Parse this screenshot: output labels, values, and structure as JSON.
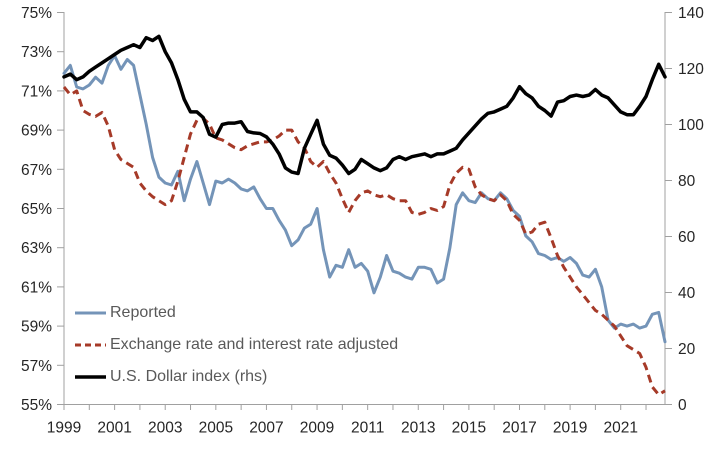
{
  "figure": {
    "background_color": "#ffffff",
    "axis_line_color": "#a0a0a0",
    "axis_label_color": "#262626",
    "legend_text_color": "#595959"
  },
  "chart_data": {
    "type": "line",
    "title": "",
    "frequency": "quarterly",
    "x_range": [
      "1999Q1",
      "2022Q4"
    ],
    "x_start_year": 1999,
    "x_quarters": 96,
    "x_axis": {
      "tick_years": [
        1999,
        2000,
        2001,
        2002,
        2003,
        2004,
        2005,
        2006,
        2007,
        2008,
        2009,
        2010,
        2011,
        2012,
        2013,
        2014,
        2015,
        2016,
        2017,
        2018,
        2019,
        2020,
        2021,
        2022
      ],
      "labels": [
        "1999",
        "2001",
        "2003",
        "2005",
        "2007",
        "2009",
        "2011",
        "2013",
        "2015",
        "2017",
        "2019",
        "2021"
      ],
      "label_year_step": 2
    },
    "left_axis": {
      "min": 55,
      "max": 75,
      "tick_step": 2,
      "tick_labels": [
        "55%",
        "57%",
        "59%",
        "61%",
        "63%",
        "65%",
        "67%",
        "69%",
        "71%",
        "73%",
        "75%"
      ]
    },
    "right_axis": {
      "min": 0,
      "max": 140,
      "tick_step": 20,
      "tick_labels": [
        "0",
        "20",
        "40",
        "60",
        "80",
        "100",
        "120",
        "140"
      ]
    },
    "grid": false,
    "legend_position": "inside-bottom-left",
    "series": [
      {
        "name": "Reported",
        "axis": "left",
        "color": "#7494b8",
        "dash": "",
        "width": 3,
        "values": [
          71.9,
          72.3,
          71.2,
          71.1,
          71.3,
          71.7,
          71.4,
          72.3,
          72.8,
          72.1,
          72.6,
          72.3,
          70.8,
          69.3,
          67.6,
          66.6,
          66.3,
          66.2,
          66.9,
          65.4,
          66.5,
          67.4,
          66.3,
          65.2,
          66.4,
          66.3,
          66.5,
          66.3,
          66.0,
          65.9,
          66.1,
          65.5,
          65.0,
          65.0,
          64.4,
          63.9,
          63.1,
          63.4,
          64.0,
          64.2,
          65.0,
          62.9,
          61.5,
          62.1,
          62.0,
          62.9,
          62.0,
          62.2,
          61.8,
          60.7,
          61.5,
          62.6,
          61.8,
          61.7,
          61.5,
          61.4,
          62.0,
          62.0,
          61.9,
          61.2,
          61.4,
          63.0,
          65.2,
          65.8,
          65.4,
          65.3,
          65.8,
          65.5,
          65.4,
          65.8,
          65.5,
          64.9,
          64.6,
          63.6,
          63.3,
          62.7,
          62.6,
          62.4,
          62.5,
          62.3,
          62.5,
          62.2,
          61.6,
          61.5,
          61.9,
          61.0,
          59.3,
          58.9,
          59.1,
          59.0,
          59.1,
          58.9,
          59.0,
          59.6,
          59.7,
          58.2
        ]
      },
      {
        "name": "Exchange rate and interest rate adjusted",
        "axis": "left",
        "color": "#a63a28",
        "dash": "8 5",
        "width": 3,
        "values": [
          71.2,
          70.8,
          71.0,
          70.0,
          69.8,
          69.7,
          69.9,
          69.2,
          68.0,
          67.5,
          67.3,
          67.1,
          66.3,
          65.9,
          65.6,
          65.4,
          65.2,
          65.4,
          66.4,
          67.6,
          68.8,
          69.5,
          69.6,
          69.3,
          68.6,
          68.5,
          68.3,
          68.1,
          68.0,
          68.2,
          68.3,
          68.4,
          68.4,
          68.5,
          68.7,
          69.0,
          69.0,
          68.4,
          68.1,
          67.4,
          67.1,
          67.4,
          66.8,
          66.3,
          65.5,
          64.8,
          65.4,
          65.8,
          65.9,
          65.7,
          65.6,
          65.7,
          65.5,
          65.4,
          65.4,
          64.8,
          64.7,
          64.8,
          65.0,
          64.9,
          65.1,
          66.2,
          66.8,
          67.1,
          67.0,
          66.1,
          65.7,
          65.5,
          65.4,
          65.7,
          65.4,
          64.7,
          64.4,
          63.7,
          63.8,
          64.2,
          64.3,
          63.5,
          62.6,
          62.0,
          61.5,
          61.0,
          60.6,
          60.2,
          59.8,
          59.6,
          59.3,
          59.0,
          58.5,
          58.0,
          57.8,
          57.6,
          56.9,
          55.9,
          55.5,
          55.7
        ]
      },
      {
        "name": "U.S. Dollar index (rhs)",
        "axis": "right",
        "color": "#000000",
        "dash": "",
        "width": 3.5,
        "values": [
          117,
          118,
          116,
          117,
          119,
          120.5,
          122,
          123.5,
          125,
          126.5,
          127.5,
          128.5,
          127.5,
          131,
          130,
          131.5,
          126,
          122,
          116,
          109,
          104.5,
          104.5,
          102.5,
          96.5,
          95.5,
          100,
          100.5,
          100.5,
          101,
          97.5,
          97,
          96.8,
          95.6,
          93,
          89.5,
          84.5,
          83,
          82.5,
          91.5,
          96.5,
          101.5,
          93,
          89,
          88,
          85.5,
          82.5,
          84,
          87.5,
          86,
          84.5,
          83.5,
          84.5,
          87.5,
          88.5,
          87.5,
          88.5,
          89,
          89.5,
          88.5,
          89.5,
          89.5,
          90.5,
          91.5,
          94.5,
          97,
          99.5,
          102,
          104,
          104.5,
          105.5,
          106.5,
          109.5,
          113.5,
          111,
          109.5,
          106.5,
          105,
          103,
          108,
          108.5,
          110,
          110.5,
          110,
          110.5,
          112.5,
          110.5,
          109.5,
          107,
          104.5,
          103.5,
          103.5,
          106.5,
          110,
          116,
          121.5,
          117
        ]
      }
    ]
  }
}
